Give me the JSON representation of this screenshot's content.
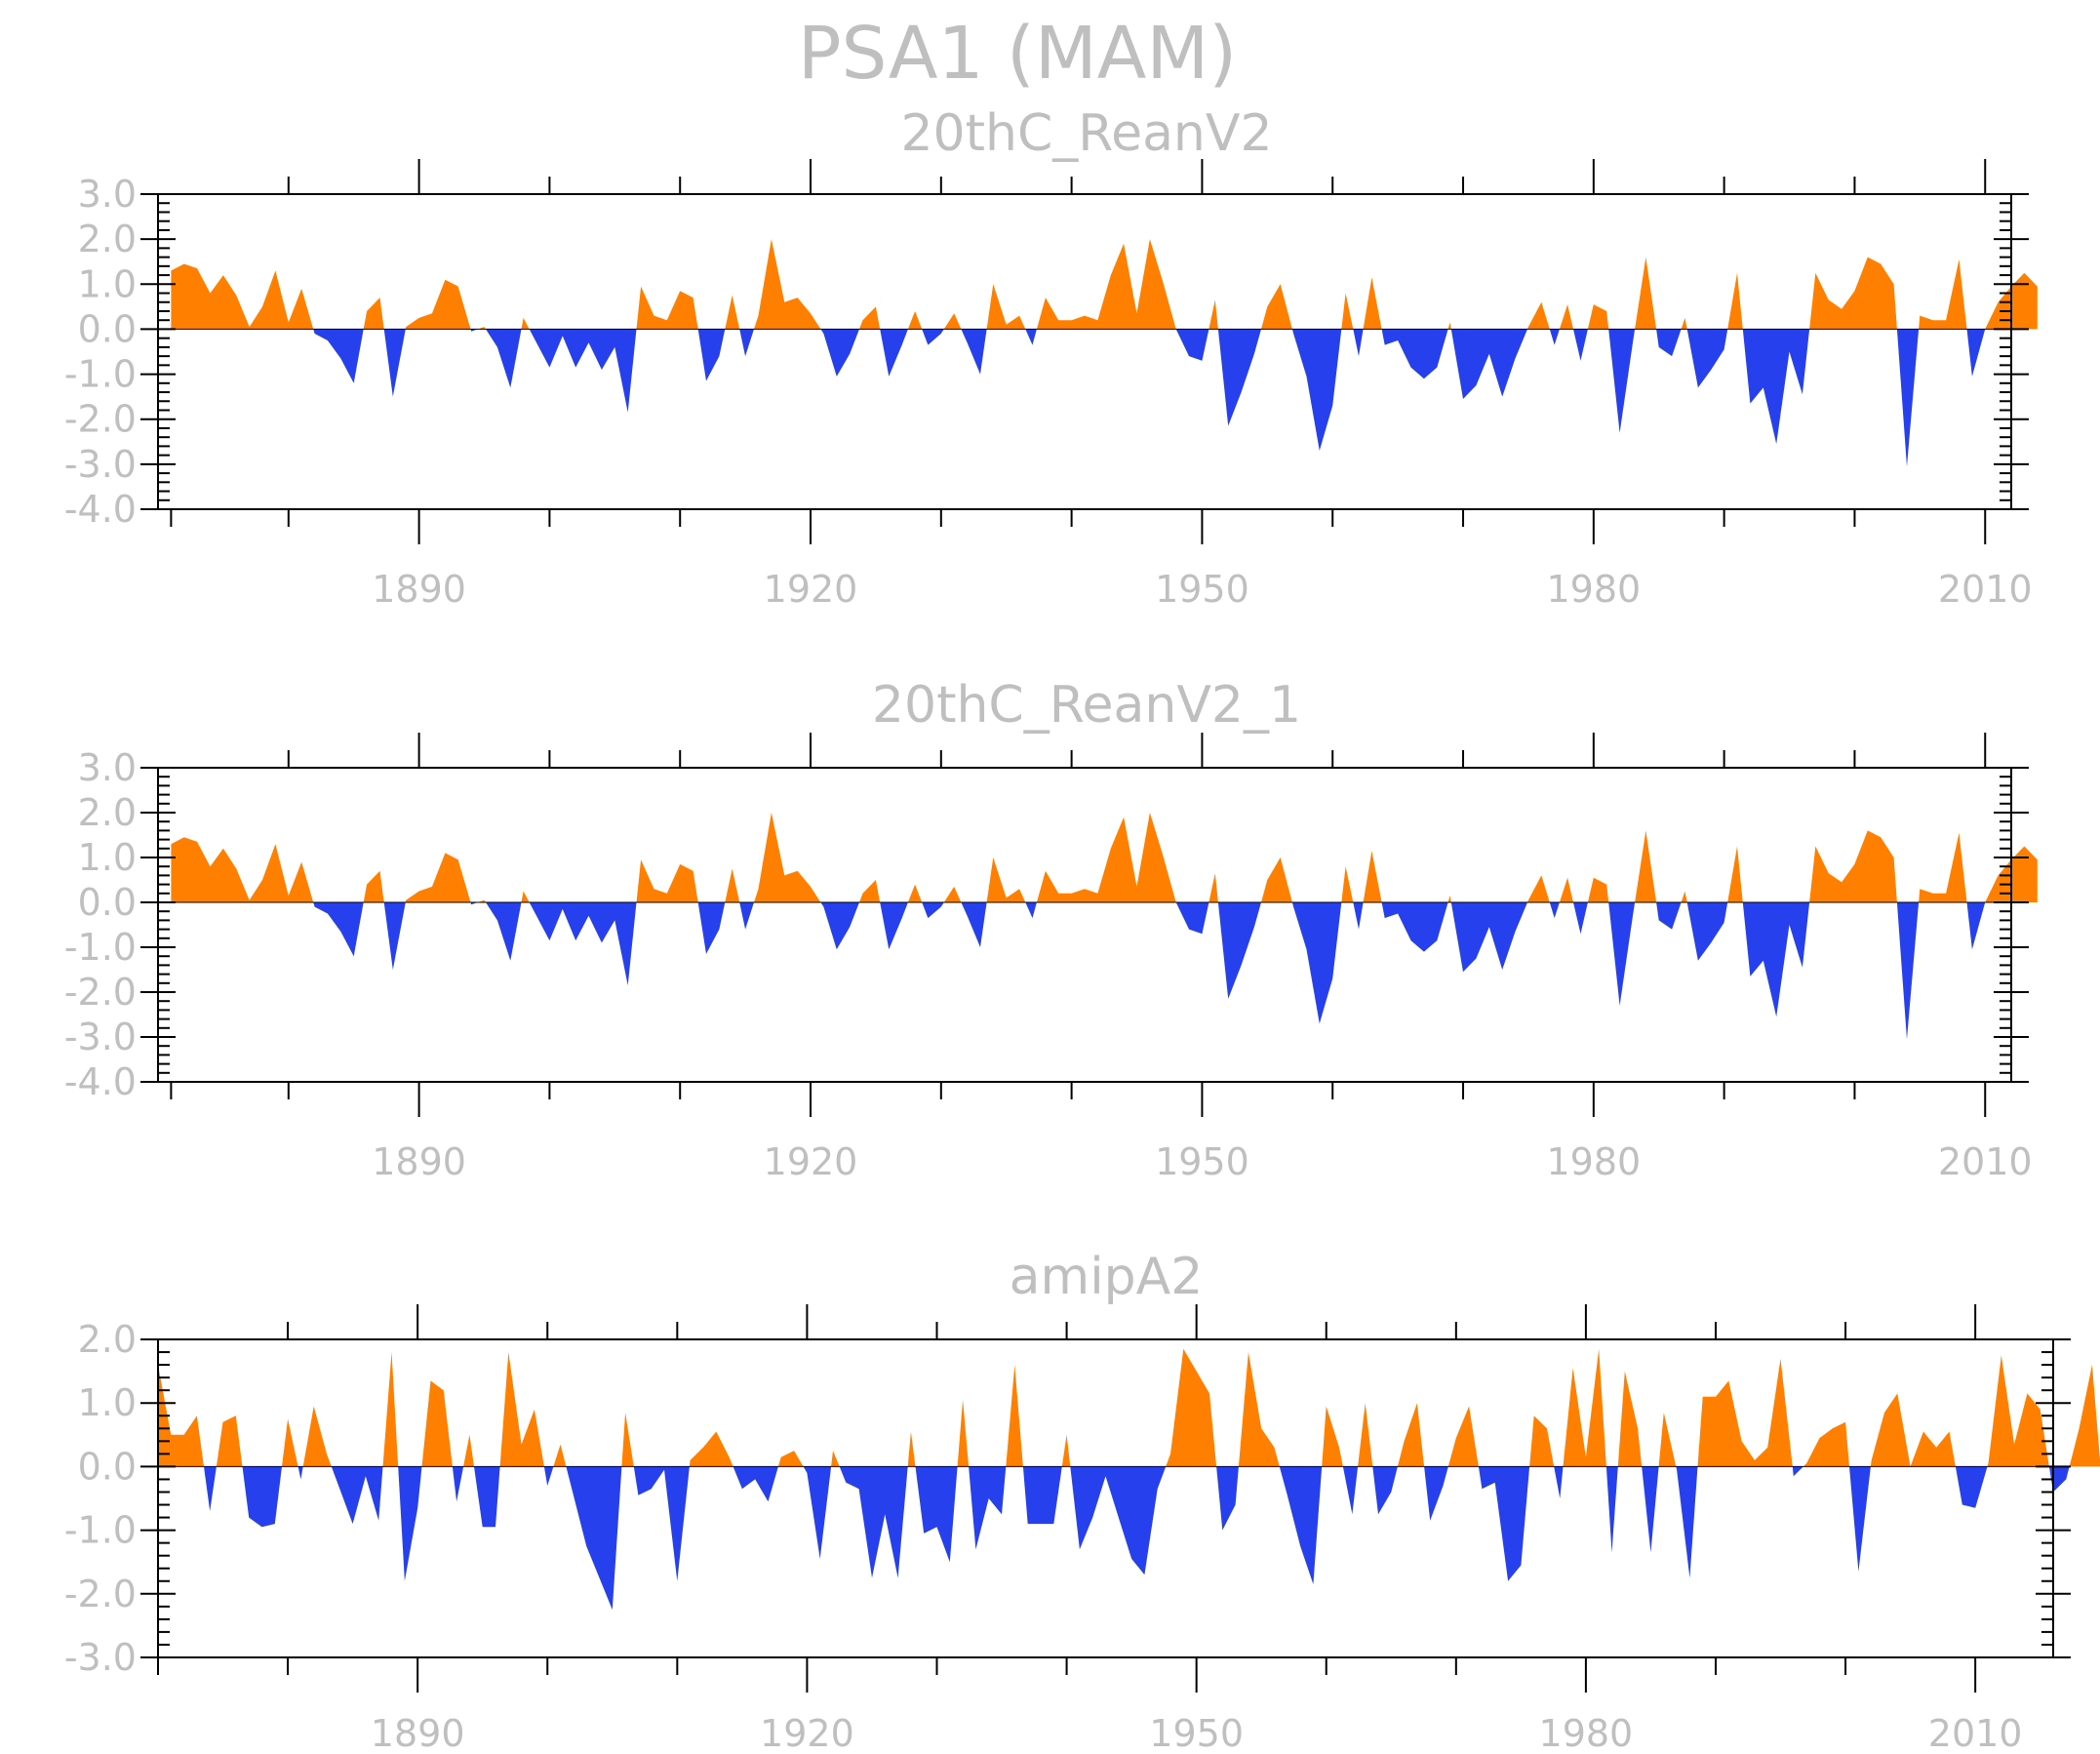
{
  "title": "PSA1  (MAM)",
  "colors": {
    "positive": "#ff8000",
    "negative": "#2640ee",
    "text": "#bfbfbf",
    "frame": "#000000"
  },
  "chart_data": [
    {
      "type": "area",
      "title": "20thC_ReanV2",
      "xlabel": "",
      "ylabel": "",
      "xlim": [
        1870,
        2012
      ],
      "ylim": [
        -4.0,
        3.0
      ],
      "xticks": [
        1890,
        1920,
        1950,
        1980,
        2010
      ],
      "xtick_labels": [
        "1890",
        "1920",
        "1950",
        "1980",
        "2010"
      ],
      "yticks": [
        3.0,
        2.0,
        1.0,
        0.0,
        -1.0,
        -2.0,
        -3.0,
        -4.0
      ],
      "ytick_labels": [
        "3.0",
        "2.0",
        "1.0",
        "0.0",
        "-1.0",
        "-2.0",
        "-3.0",
        "-4.0"
      ],
      "x_start": 1871,
      "values": [
        1.3,
        1.45,
        1.35,
        0.8,
        1.2,
        0.75,
        0.05,
        0.5,
        1.3,
        0.15,
        0.9,
        -0.1,
        -0.25,
        -0.65,
        -1.2,
        0.4,
        0.7,
        -1.5,
        0.05,
        0.25,
        0.35,
        1.1,
        0.95,
        -0.05,
        0.05,
        -0.4,
        -1.3,
        0.25,
        -0.3,
        -0.85,
        -0.15,
        -0.85,
        -0.3,
        -0.9,
        -0.4,
        -1.85,
        0.95,
        0.3,
        0.2,
        0.85,
        0.7,
        -1.15,
        -0.6,
        0.75,
        -0.6,
        0.3,
        2.0,
        0.6,
        0.7,
        0.35,
        -0.1,
        -1.05,
        -0.55,
        0.2,
        0.5,
        -1.05,
        -0.35,
        0.4,
        -0.35,
        -0.1,
        0.35,
        -0.3,
        -1.0,
        1.0,
        0.1,
        0.3,
        -0.35,
        0.7,
        0.2,
        0.2,
        0.3,
        0.2,
        1.2,
        1.9,
        0.35,
        2.0,
        1.05,
        0.0,
        -0.6,
        -0.7,
        0.65,
        -2.15,
        -1.4,
        -0.55,
        0.5,
        1.0,
        -0.1,
        -1.05,
        -2.7,
        -1.7,
        0.8,
        -0.6,
        1.15,
        -0.35,
        -0.25,
        -0.85,
        -1.1,
        -0.85,
        0.15,
        -1.55,
        -1.25,
        -0.55,
        -1.5,
        -0.65,
        0.05,
        0.6,
        -0.35,
        0.55,
        -0.7,
        0.55,
        0.4,
        -2.3,
        -0.3,
        1.6,
        -0.4,
        -0.6,
        0.25,
        -1.3,
        -0.9,
        -0.45,
        1.25,
        -1.65,
        -1.3,
        -2.55,
        -0.5,
        -1.45,
        1.25,
        0.65,
        0.45,
        0.85,
        1.6,
        1.45,
        1.0,
        -3.05,
        0.3,
        0.2,
        0.2,
        1.55,
        -1.05,
        0.0,
        0.6,
        0.95,
        1.25,
        0.95
      ]
    },
    {
      "type": "area",
      "title": "20thC_ReanV2_1",
      "xlabel": "",
      "ylabel": "",
      "xlim": [
        1870,
        2012
      ],
      "ylim": [
        -4.0,
        3.0
      ],
      "xticks": [
        1890,
        1920,
        1950,
        1980,
        2010
      ],
      "xtick_labels": [
        "1890",
        "1920",
        "1950",
        "1980",
        "2010"
      ],
      "yticks": [
        3.0,
        2.0,
        1.0,
        0.0,
        -1.0,
        -2.0,
        -3.0,
        -4.0
      ],
      "ytick_labels": [
        "3.0",
        "2.0",
        "1.0",
        "0.0",
        "-1.0",
        "-2.0",
        "-3.0",
        "-4.0"
      ],
      "x_start": 1871,
      "values": [
        1.3,
        1.45,
        1.35,
        0.8,
        1.2,
        0.75,
        0.05,
        0.5,
        1.3,
        0.15,
        0.9,
        -0.1,
        -0.25,
        -0.65,
        -1.2,
        0.4,
        0.7,
        -1.5,
        0.05,
        0.25,
        0.35,
        1.1,
        0.95,
        -0.05,
        0.05,
        -0.4,
        -1.3,
        0.25,
        -0.3,
        -0.85,
        -0.15,
        -0.85,
        -0.3,
        -0.9,
        -0.4,
        -1.85,
        0.95,
        0.3,
        0.2,
        0.85,
        0.7,
        -1.15,
        -0.6,
        0.75,
        -0.6,
        0.3,
        2.0,
        0.6,
        0.7,
        0.35,
        -0.1,
        -1.05,
        -0.55,
        0.2,
        0.5,
        -1.05,
        -0.35,
        0.4,
        -0.35,
        -0.1,
        0.35,
        -0.3,
        -1.0,
        1.0,
        0.1,
        0.3,
        -0.35,
        0.7,
        0.2,
        0.2,
        0.3,
        0.2,
        1.2,
        1.9,
        0.35,
        2.0,
        1.05,
        0.0,
        -0.6,
        -0.7,
        0.65,
        -2.15,
        -1.4,
        -0.55,
        0.5,
        1.0,
        -0.1,
        -1.05,
        -2.7,
        -1.7,
        0.8,
        -0.6,
        1.15,
        -0.35,
        -0.25,
        -0.85,
        -1.1,
        -0.85,
        0.15,
        -1.55,
        -1.25,
        -0.55,
        -1.5,
        -0.65,
        0.05,
        0.6,
        -0.35,
        0.55,
        -0.7,
        0.55,
        0.4,
        -2.3,
        -0.3,
        1.6,
        -0.4,
        -0.6,
        0.25,
        -1.3,
        -0.9,
        -0.45,
        1.25,
        -1.65,
        -1.3,
        -2.55,
        -0.5,
        -1.45,
        1.25,
        0.65,
        0.45,
        0.85,
        1.6,
        1.45,
        1.0,
        -3.05,
        0.3,
        0.2,
        0.2,
        1.55,
        -1.05,
        0.0,
        0.6,
        0.95,
        1.25,
        0.95
      ]
    },
    {
      "type": "area",
      "title": "amipA2",
      "xlabel": "",
      "ylabel": "",
      "xlim": [
        1870,
        2016
      ],
      "ylim": [
        -3.0,
        2.0
      ],
      "xticks": [
        1890,
        1920,
        1950,
        1980,
        2010
      ],
      "xtick_labels": [
        "1890",
        "1920",
        "1950",
        "1980",
        "2010"
      ],
      "yticks": [
        2.0,
        1.0,
        0.0,
        -1.0,
        -2.0,
        -3.0
      ],
      "ytick_labels": [
        "2.0",
        "1.0",
        "0.0",
        "-1.0",
        "-2.0",
        "-3.0"
      ],
      "x_start": 1870,
      "values": [
        1.6,
        0.5,
        0.5,
        0.8,
        -0.7,
        0.7,
        0.8,
        -0.8,
        -0.95,
        -0.9,
        0.75,
        -0.2,
        0.95,
        0.2,
        -0.35,
        -0.9,
        -0.15,
        -0.85,
        1.8,
        -1.8,
        -0.65,
        1.35,
        1.2,
        -0.55,
        0.5,
        -0.95,
        -0.95,
        1.8,
        0.35,
        0.9,
        -0.3,
        0.35,
        -0.45,
        -1.25,
        -1.75,
        -2.25,
        0.85,
        -0.45,
        -0.35,
        -0.05,
        -1.8,
        0.1,
        0.3,
        0.55,
        0.15,
        -0.35,
        -0.2,
        -0.55,
        0.15,
        0.25,
        -0.1,
        -1.45,
        0.25,
        -0.25,
        -0.35,
        -1.75,
        -0.75,
        -1.75,
        0.55,
        -1.05,
        -0.95,
        -1.5,
        1.05,
        -1.3,
        -0.5,
        -0.75,
        1.6,
        -0.9,
        -0.9,
        -0.9,
        0.5,
        -1.3,
        -0.8,
        -0.15,
        -0.8,
        -1.45,
        -1.7,
        -0.35,
        0.2,
        1.85,
        1.5,
        1.15,
        -1.0,
        -0.6,
        1.8,
        0.6,
        0.3,
        -0.45,
        -1.25,
        -1.85,
        0.95,
        0.3,
        -0.75,
        1.0,
        -0.75,
        -0.4,
        0.4,
        1.0,
        -0.85,
        -0.3,
        0.45,
        0.95,
        -0.35,
        -0.25,
        -1.8,
        -1.55,
        0.8,
        0.6,
        -0.5,
        1.55,
        0.15,
        1.85,
        -1.35,
        1.5,
        0.6,
        -1.35,
        0.85,
        -0.05,
        -1.75,
        1.1,
        1.1,
        1.35,
        0.4,
        0.1,
        0.3,
        1.7,
        -0.15,
        0.05,
        0.45,
        0.6,
        0.7,
        -1.65,
        0.1,
        0.85,
        1.15,
        0.0,
        0.55,
        0.3,
        0.55,
        -0.6,
        -0.65,
        0.05,
        1.75,
        0.35,
        1.15,
        0.9,
        -0.4,
        -0.2,
        0.6,
        1.6,
        -0.85
      ]
    }
  ]
}
